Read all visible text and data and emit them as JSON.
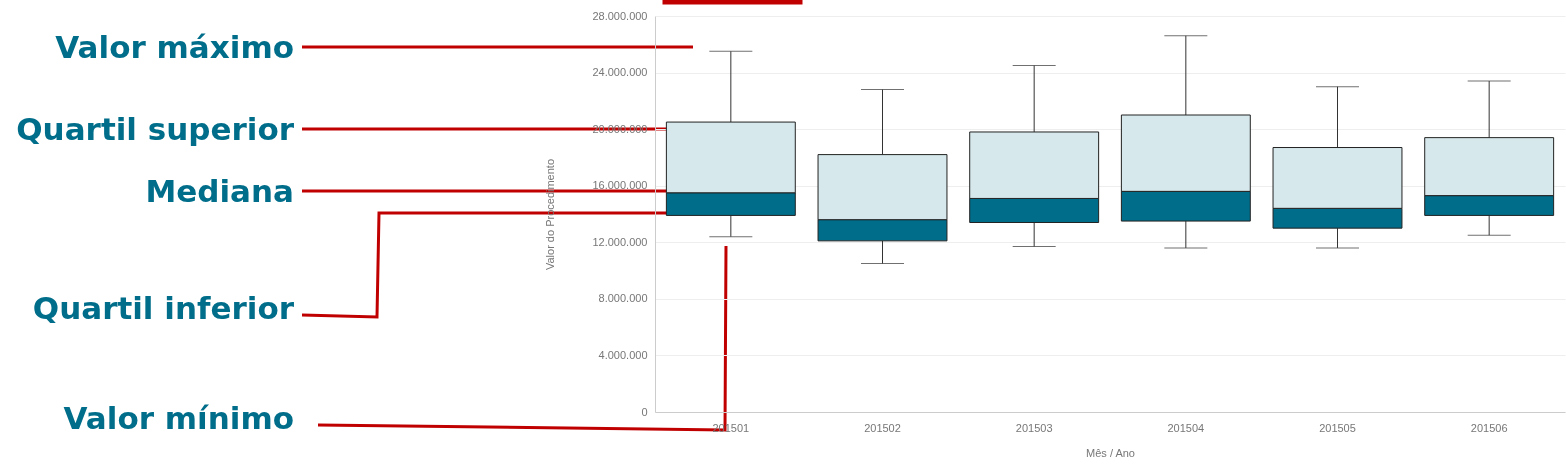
{
  "chart_data": {
    "type": "box",
    "xlabel": "Mês / Ano",
    "ylabel": "Valor do Procedimento",
    "categories": [
      "201501",
      "201502",
      "201503",
      "201504",
      "201505",
      "201506"
    ],
    "series": [
      {
        "color": "#006e8a",
        "boxes": [
          {
            "low": 12400000,
            "q1": 13900000,
            "median": 15500000,
            "q3": 20500000,
            "high": 25500000
          },
          {
            "low": 10500000,
            "q1": 12100000,
            "median": 13600000,
            "q3": 18200000,
            "high": 22800000
          },
          {
            "low": 11700000,
            "q1": 13400000,
            "median": 15100000,
            "q3": 19800000,
            "high": 24500000
          },
          {
            "low": 11600000,
            "q1": 13500000,
            "median": 15600000,
            "q3": 21000000,
            "high": 26600000
          },
          {
            "low": 11600000,
            "q1": 13000000,
            "median": 14400000,
            "q3": 18700000,
            "high": 23000000
          },
          {
            "low": 12500000,
            "q1": 13900000,
            "median": 15300000,
            "q3": 19400000,
            "high": 23400000
          }
        ]
      }
    ],
    "ylim": [
      0,
      28000000
    ],
    "yticks": [
      0,
      {
        "value": 4000000,
        "label": "4.000.000"
      },
      {
        "value": 8000000,
        "label": "8.000.000"
      },
      {
        "value": 12000000,
        "label": "12.000.000"
      },
      {
        "value": 16000000,
        "label": "16.000.000"
      },
      {
        "value": 20000000,
        "label": "20.000.000"
      },
      {
        "value": 24000000,
        "label": "24.000.000"
      },
      {
        "value": 28000000,
        "label": "28.000.000"
      }
    ],
    "grid": "y",
    "annotations": [
      "Valor máximo",
      "Quartil superior",
      "Mediana",
      "Quartil inferior",
      "Valor mínimo"
    ]
  }
}
